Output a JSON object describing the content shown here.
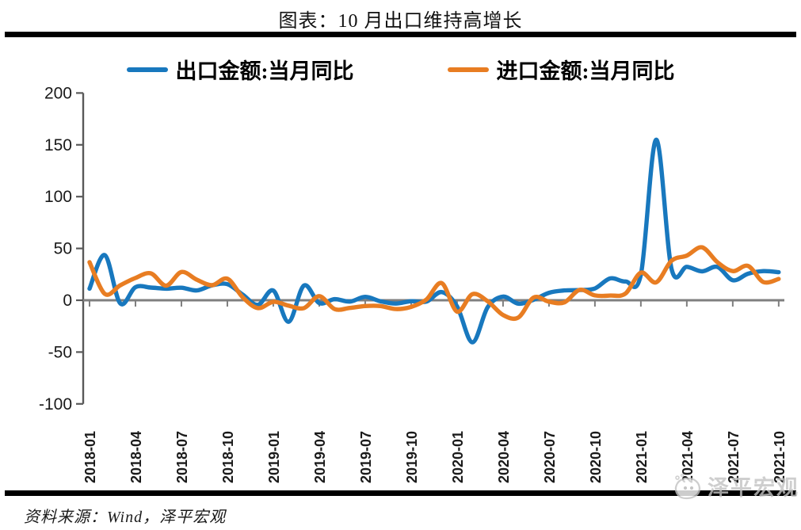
{
  "header": {
    "title": "图表：10 月出口维持高增长"
  },
  "footer": {
    "source": "资料来源：Wind，泽平宏观",
    "watermark": "泽平宏观"
  },
  "colors": {
    "export_line": "#1878BE",
    "import_line": "#E87D22",
    "axis": "#595959",
    "zero_line": "#7f7f7f",
    "watermark": "#c3c3c3"
  },
  "chart_data": {
    "type": "line",
    "title": "图表：10 月出口维持高增长",
    "xlabel": "",
    "ylabel": "",
    "ylim": [
      -100,
      200
    ],
    "yticks": [
      200,
      150,
      100,
      50,
      0,
      -50,
      -100
    ],
    "x_tick_every": 3,
    "grid": false,
    "legend_position": "top",
    "x": [
      "2018-01",
      "2018-02",
      "2018-03",
      "2018-04",
      "2018-05",
      "2018-06",
      "2018-07",
      "2018-08",
      "2018-09",
      "2018-10",
      "2018-11",
      "2018-12",
      "2019-01",
      "2019-02",
      "2019-03",
      "2019-04",
      "2019-05",
      "2019-06",
      "2019-07",
      "2019-08",
      "2019-09",
      "2019-10",
      "2019-11",
      "2019-12",
      "2020-01",
      "2020-02",
      "2020-03",
      "2020-04",
      "2020-05",
      "2020-06",
      "2020-07",
      "2020-08",
      "2020-09",
      "2020-10",
      "2020-11",
      "2020-12",
      "2021-01",
      "2021-02",
      "2021-03",
      "2021-04",
      "2021-05",
      "2021-06",
      "2021-07",
      "2021-08",
      "2021-09",
      "2021-10"
    ],
    "x_tick_labels": [
      "2018-01",
      "2018-04",
      "2018-07",
      "2018-10",
      "2019-01",
      "2019-04",
      "2019-07",
      "2019-10",
      "2020-01",
      "2020-04",
      "2020-07",
      "2020-10",
      "2021-01",
      "2021-04",
      "2021-07",
      "2021-10"
    ],
    "series": [
      {
        "name": "出口金额:当月同比",
        "color": "#1878BE",
        "values": [
          11.2,
          43.6,
          -3.0,
          12.6,
          12.2,
          11.2,
          12.1,
          9.5,
          14.4,
          15.5,
          5.4,
          -4.4,
          9.3,
          -20.8,
          14.2,
          -2.7,
          1.1,
          -1.3,
          3.3,
          -1.0,
          -3.2,
          -0.9,
          -1.3,
          7.9,
          -6.0,
          -40.6,
          -6.6,
          3.5,
          -3.3,
          0.5,
          7.2,
          9.5,
          9.9,
          11.4,
          21.1,
          18.1,
          24.8,
          154.9,
          30.6,
          32.3,
          27.9,
          32.2,
          19.3,
          25.6,
          28.1,
          27.1
        ]
      },
      {
        "name": "进口金额:当月同比",
        "color": "#E87D22",
        "values": [
          36.8,
          6.1,
          14.4,
          21.5,
          26.0,
          14.1,
          27.3,
          19.9,
          14.5,
          20.8,
          2.9,
          -7.6,
          -1.5,
          -5.2,
          -7.6,
          4.0,
          -8.5,
          -7.4,
          -5.6,
          -5.6,
          -8.5,
          -6.4,
          0.8,
          16.5,
          -11.0,
          5.9,
          -1.0,
          -14.2,
          -16.7,
          2.7,
          -1.4,
          -2.1,
          10.0,
          4.7,
          4.5,
          6.5,
          26.6,
          17.3,
          38.1,
          43.1,
          51.1,
          36.7,
          28.1,
          33.1,
          17.6,
          20.6
        ]
      }
    ]
  }
}
